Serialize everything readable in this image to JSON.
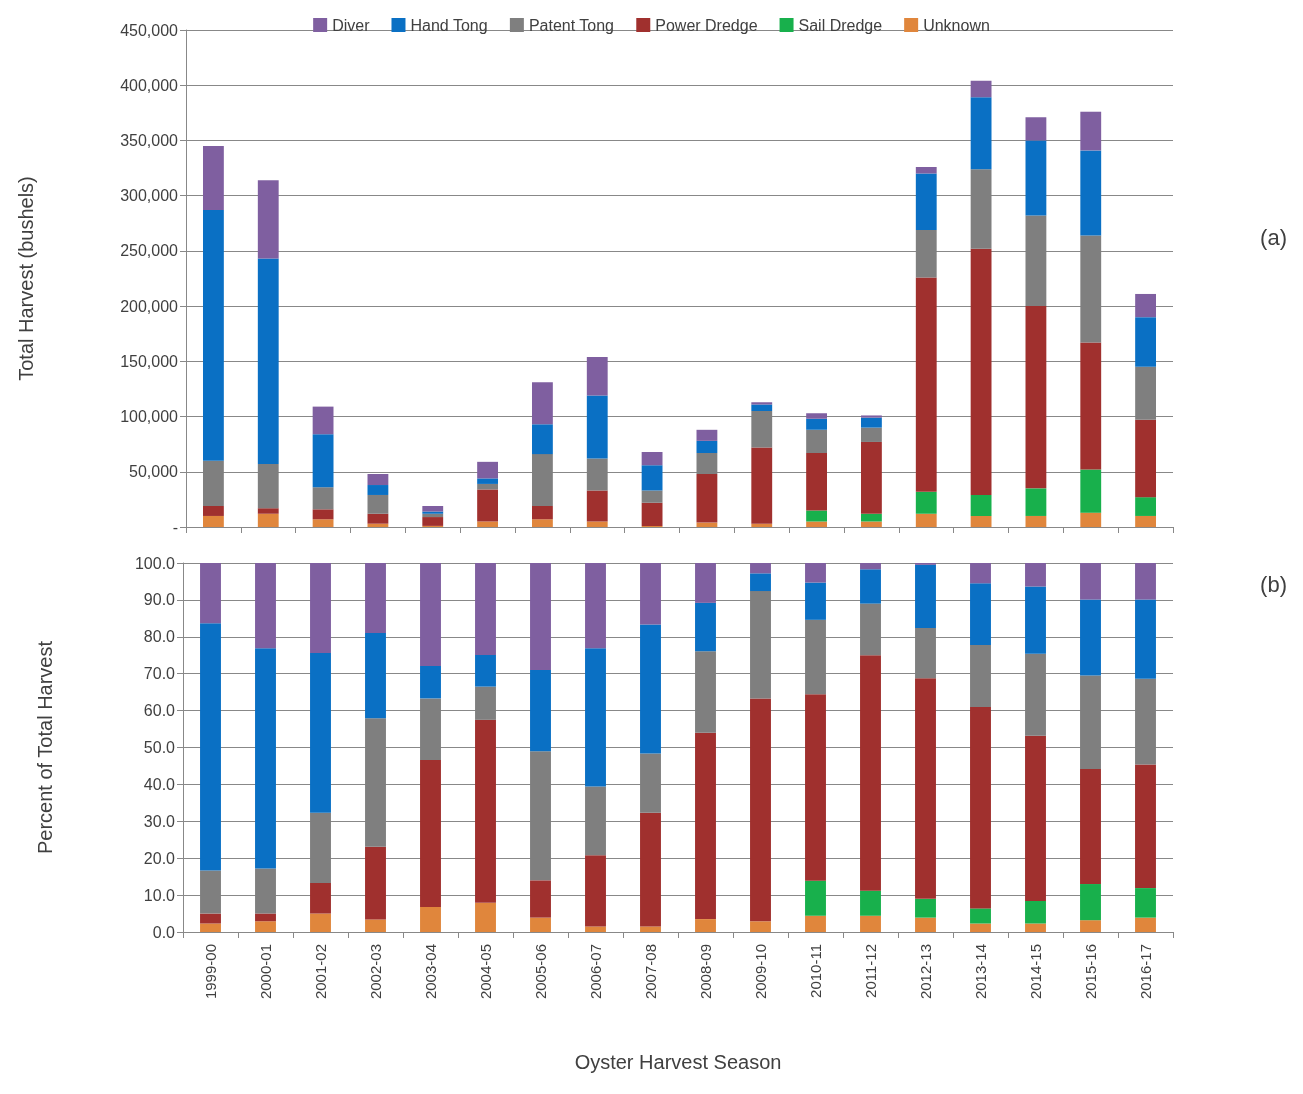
{
  "chart_data": [
    {
      "type": "bar",
      "stacked": true,
      "ylabel": "Total Harvest (bushels)",
      "annotations": [
        "(a)"
      ],
      "legend": "top",
      "grid": "y",
      "tick_labels": "y",
      "categories": [
        "1999-00",
        "2000-01",
        "2001-02",
        "2002-03",
        "2003-04",
        "2004-05",
        "2005-06",
        "2006-07",
        "2007-08",
        "2008-09",
        "2009-10",
        "2010-11",
        "2011-12",
        "2012-13",
        "2013-14",
        "2014-15",
        "2015-16",
        "2016-17"
      ],
      "ylim": [
        0,
        450000
      ],
      "yticks": [
        {
          "value": 0,
          "label": "-"
        },
        {
          "value": 50000,
          "label": "50,000"
        },
        {
          "value": 100000,
          "label": "100,000"
        },
        {
          "value": 150000,
          "label": "150,000"
        },
        {
          "value": 200000,
          "label": "200,000"
        },
        {
          "value": 250000,
          "label": "250,000"
        },
        {
          "value": 300000,
          "label": "300,000"
        },
        {
          "value": 350000,
          "label": "350,000"
        },
        {
          "value": 400000,
          "label": "400,000"
        },
        {
          "value": 450000,
          "label": "450,000"
        }
      ],
      "series": [
        {
          "name": "Unknown",
          "color": "#e0863c",
          "values": [
            10000,
            12000,
            7000,
            3000,
            1000,
            5000,
            7000,
            5000,
            1000,
            4000,
            3000,
            5000,
            5000,
            12000,
            10000,
            10000,
            13000,
            10000
          ]
        },
        {
          "name": "Sail Dredge",
          "color": "#18b04c",
          "values": [
            null,
            null,
            null,
            null,
            null,
            null,
            null,
            null,
            null,
            null,
            null,
            10000,
            7000,
            20000,
            19000,
            25000,
            39000,
            17000
          ]
        },
        {
          "name": "Power Dredge",
          "color": "#a0302e",
          "values": [
            9000,
            5000,
            9000,
            9000,
            8000,
            29000,
            12000,
            28000,
            21000,
            44000,
            69000,
            52000,
            65000,
            194000,
            223000,
            165000,
            115000,
            70000
          ]
        },
        {
          "name": "Patent Tong",
          "color": "#7f7f7f",
          "values": [
            41000,
            40000,
            20000,
            17000,
            3000,
            5000,
            47000,
            29000,
            11000,
            19000,
            33000,
            21000,
            13000,
            43000,
            72000,
            82000,
            97000,
            48000
          ]
        },
        {
          "name": "Hand Tong",
          "color": "#0a70c4",
          "values": [
            227000,
            186000,
            48000,
            9000,
            2000,
            5000,
            27000,
            57000,
            23000,
            11000,
            6000,
            10000,
            9000,
            51000,
            65000,
            68000,
            77000,
            45000
          ]
        },
        {
          "name": "Diver",
          "color": "#7f5fa0",
          "values": [
            58000,
            71000,
            25000,
            10000,
            5000,
            15000,
            38000,
            35000,
            12000,
            10000,
            2000,
            5000,
            2000,
            6000,
            15000,
            21000,
            35000,
            21000
          ]
        }
      ]
    },
    {
      "type": "bar",
      "stacked": true,
      "ylabel": "Percent of Total Harvest",
      "xlabel": "Oyster Harvest Season",
      "annotations": [
        "(b)"
      ],
      "grid": "y",
      "categories": [
        "1999-00",
        "2000-01",
        "2001-02",
        "2002-03",
        "2003-04",
        "2004-05",
        "2005-06",
        "2006-07",
        "2007-08",
        "2008-09",
        "2009-10",
        "2010-11",
        "2011-12",
        "2012-13",
        "2013-14",
        "2014-15",
        "2015-16",
        "2016-17"
      ],
      "ylim": [
        0,
        100
      ],
      "yticks": [
        {
          "value": 0,
          "label": "0.0"
        },
        {
          "value": 10,
          "label": "10.0"
        },
        {
          "value": 20,
          "label": "20.0"
        },
        {
          "value": 30,
          "label": "30.0"
        },
        {
          "value": 40,
          "label": "40.0"
        },
        {
          "value": 50,
          "label": "50.0"
        },
        {
          "value": 60,
          "label": "60.0"
        },
        {
          "value": 70,
          "label": "70.0"
        },
        {
          "value": 80,
          "label": "80.0"
        },
        {
          "value": 90,
          "label": "90.0"
        },
        {
          "value": 100,
          "label": "100.0"
        }
      ],
      "series": [
        {
          "color": "#e0863c",
          "values": [
            2.3,
            2.9,
            5.0,
            3.4,
            6.8,
            7.9,
            3.9,
            1.5,
            1.5,
            3.5,
            2.9,
            4.4,
            4.4,
            3.9,
            2.3,
            2.3,
            3.2,
            3.9
          ]
        },
        {
          "color": "#18b04c",
          "values": [
            null,
            null,
            null,
            null,
            null,
            null,
            null,
            null,
            null,
            null,
            null,
            9.5,
            6.8,
            5.1,
            4.1,
            6.1,
            9.8,
            8.0
          ]
        },
        {
          "color": "#a0302e",
          "values": [
            2.7,
            2.1,
            8.3,
            19.7,
            39.8,
            49.6,
            10.1,
            19.3,
            30.8,
            50.5,
            60.4,
            50.5,
            63.8,
            59.8,
            54.6,
            44.8,
            31.2,
            33.5
          ]
        },
        {
          "color": "#7f7f7f",
          "values": [
            11.7,
            12.2,
            19.0,
            34.8,
            16.7,
            9.0,
            35.0,
            18.6,
            16.1,
            22.1,
            29.1,
            20.2,
            14.0,
            13.6,
            16.8,
            22.2,
            25.3,
            23.2
          ]
        },
        {
          "color": "#0a70c4",
          "values": [
            67.0,
            59.7,
            43.3,
            23.1,
            8.8,
            8.6,
            22.0,
            37.5,
            34.9,
            13.1,
            4.8,
            10.1,
            9.3,
            17.1,
            16.7,
            18.2,
            20.6,
            21.5
          ]
        },
        {
          "color": "#7f5fa0",
          "values": [
            16.3,
            23.1,
            24.4,
            19.0,
            27.9,
            24.9,
            29.0,
            23.1,
            16.7,
            10.8,
            2.8,
            5.3,
            1.7,
            0.5,
            5.5,
            6.4,
            9.9,
            9.9
          ]
        }
      ]
    }
  ]
}
